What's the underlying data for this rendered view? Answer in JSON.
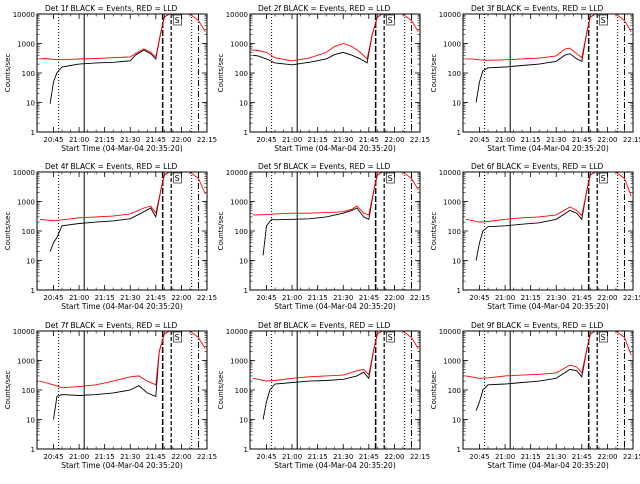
{
  "chart_data": {
    "type": "line",
    "x_ticks": [
      "20:45",
      "21:00",
      "21:15",
      "21:30",
      "21:45",
      "22:00",
      "22:15"
    ],
    "y_ticks": [
      "1",
      "10",
      "100",
      "1000",
      "10000"
    ],
    "y_scale": "log",
    "ylim": [
      1,
      10000
    ],
    "ylabel": "Counts/sec",
    "xlabel": "Start Time (04-Mar-04 20:35:20)",
    "legend_text": "BLACK = Events, RED = LLD",
    "annotation": "S",
    "colors": {
      "events": "#000000",
      "lld": "#ff0000"
    },
    "panels": [
      {
        "title": "Det 1f",
        "series": [
          {
            "name": "Events",
            "x": [
              "20:43",
              "20:45",
              "20:47",
              "20:50",
              "20:55",
              "21:00",
              "21:10",
              "21:20",
              "21:30",
              "21:33",
              "21:38",
              "21:42",
              "21:45",
              "21:48",
              "21:50",
              "21:53"
            ],
            "y": [
              9,
              50,
              100,
              160,
              180,
              200,
              220,
              230,
              260,
              400,
              600,
              450,
              300,
              2500,
              8000,
              10000
            ]
          },
          {
            "name": "LLD",
            "x": [
              "20:37",
              "20:40",
              "20:45",
              "20:50",
              "21:00",
              "21:10",
              "21:20",
              "21:30",
              "21:33",
              "21:38",
              "21:42",
              "21:45",
              "21:48",
              "21:50",
              "21:53",
              "22:05",
              "22:10",
              "22:14"
            ],
            "y": [
              300,
              310,
              290,
              280,
              300,
              310,
              330,
              350,
              450,
              650,
              500,
              350,
              2500,
              8000,
              10000,
              10000,
              6000,
              2500
            ]
          }
        ]
      },
      {
        "title": "Det 2f",
        "series": [
          {
            "name": "Events",
            "x": [
              "20:37",
              "20:40",
              "20:45",
              "20:50",
              "21:00",
              "21:10",
              "21:20",
              "21:25",
              "21:30",
              "21:35",
              "21:40",
              "21:44",
              "21:47",
              "21:50",
              "21:53"
            ],
            "y": [
              400,
              380,
              300,
              220,
              190,
              230,
              300,
              420,
              500,
              400,
              300,
              220,
              2000,
              8000,
              10000
            ]
          },
          {
            "name": "LLD",
            "x": [
              "20:37",
              "20:40",
              "20:45",
              "20:50",
              "21:00",
              "21:10",
              "21:20",
              "21:25",
              "21:30",
              "21:35",
              "21:40",
              "21:44",
              "21:47",
              "21:50",
              "21:53",
              "22:05",
              "22:10",
              "22:14"
            ],
            "y": [
              600,
              580,
              500,
              330,
              260,
              320,
              500,
              800,
              1000,
              800,
              500,
              300,
              2000,
              8000,
              10000,
              10000,
              6000,
              2500
            ]
          }
        ]
      },
      {
        "title": "Det 3f",
        "series": [
          {
            "name": "Events",
            "x": [
              "20:43",
              "20:45",
              "20:47",
              "20:50",
              "21:00",
              "21:10",
              "21:20",
              "21:30",
              "21:35",
              "21:38",
              "21:42",
              "21:45",
              "21:48",
              "21:50",
              "21:53"
            ],
            "y": [
              10,
              50,
              120,
              150,
              160,
              180,
              200,
              250,
              400,
              450,
              300,
              250,
              2500,
              8000,
              10000
            ]
          },
          {
            "name": "LLD",
            "x": [
              "20:37",
              "20:40",
              "20:45",
              "20:50",
              "21:00",
              "21:10",
              "21:20",
              "21:30",
              "21:35",
              "21:38",
              "21:42",
              "21:45",
              "21:48",
              "21:50",
              "21:53",
              "22:05",
              "22:10",
              "22:14"
            ],
            "y": [
              300,
              300,
              280,
              270,
              280,
              300,
              320,
              380,
              650,
              700,
              450,
              330,
              2500,
              8000,
              10000,
              10000,
              6000,
              2500
            ]
          }
        ]
      },
      {
        "title": "Det 4f",
        "series": [
          {
            "name": "Events",
            "x": [
              "20:43",
              "20:45",
              "20:47",
              "20:50",
              "21:00",
              "21:10",
              "21:20",
              "21:30",
              "21:38",
              "21:42",
              "21:45",
              "21:48",
              "21:50",
              "21:53"
            ],
            "y": [
              20,
              40,
              60,
              150,
              180,
              200,
              220,
              260,
              450,
              600,
              300,
              2500,
              8000,
              10000
            ]
          },
          {
            "name": "LLD",
            "x": [
              "20:37",
              "20:40",
              "20:45",
              "20:50",
              "21:00",
              "21:10",
              "21:20",
              "21:30",
              "21:38",
              "21:42",
              "21:45",
              "21:48",
              "21:50",
              "21:53",
              "22:05",
              "22:10",
              "22:14"
            ],
            "y": [
              250,
              240,
              220,
              240,
              280,
              300,
              320,
              380,
              600,
              700,
              400,
              2500,
              8000,
              10000,
              10000,
              6000,
              1800
            ]
          }
        ]
      },
      {
        "title": "Det 5f",
        "series": [
          {
            "name": "Events",
            "x": [
              "20:43",
              "20:45",
              "20:48",
              "20:50",
              "21:00",
              "21:10",
              "21:20",
              "21:30",
              "21:35",
              "21:38",
              "21:42",
              "21:45",
              "21:48",
              "21:50",
              "21:53"
            ],
            "y": [
              15,
              150,
              250,
              240,
              250,
              260,
              300,
              400,
              500,
              600,
              300,
              250,
              2500,
              8000,
              10000
            ]
          },
          {
            "name": "LLD",
            "x": [
              "20:37",
              "20:40",
              "20:45",
              "20:50",
              "21:00",
              "21:10",
              "21:20",
              "21:30",
              "21:35",
              "21:38",
              "21:42",
              "21:45",
              "21:48",
              "21:50",
              "21:53",
              "22:05",
              "22:10",
              "22:14"
            ],
            "y": [
              350,
              350,
              360,
              380,
              400,
              400,
              420,
              450,
              550,
              700,
              400,
              350,
              2500,
              8000,
              10000,
              10000,
              6000,
              2500
            ]
          }
        ]
      },
      {
        "title": "Det 6f",
        "series": [
          {
            "name": "Events",
            "x": [
              "20:43",
              "20:45",
              "20:47",
              "20:50",
              "21:00",
              "21:10",
              "21:20",
              "21:30",
              "21:38",
              "21:42",
              "21:45",
              "21:48",
              "21:50",
              "21:53"
            ],
            "y": [
              10,
              40,
              100,
              140,
              150,
              170,
              190,
              250,
              500,
              400,
              250,
              2500,
              8000,
              10000
            ]
          },
          {
            "name": "LLD",
            "x": [
              "20:37",
              "20:40",
              "20:45",
              "20:50",
              "21:00",
              "21:10",
              "21:20",
              "21:30",
              "21:38",
              "21:42",
              "21:45",
              "21:48",
              "21:50",
              "21:53",
              "22:05",
              "22:10",
              "22:14"
            ],
            "y": [
              250,
              230,
              200,
              210,
              250,
              280,
              300,
              350,
              650,
              500,
              330,
              2500,
              8000,
              10000,
              10000,
              6000,
              1500
            ]
          }
        ]
      },
      {
        "title": "Det 7f",
        "series": [
          {
            "name": "Events",
            "x": [
              "20:45",
              "20:47",
              "20:50",
              "21:00",
              "21:10",
              "21:20",
              "21:30",
              "21:35",
              "21:40",
              "21:45",
              "21:47",
              "21:50",
              "21:53"
            ],
            "y": [
              10,
              60,
              70,
              65,
              70,
              80,
              100,
              140,
              80,
              60,
              2000,
              8000,
              10000
            ]
          },
          {
            "name": "LLD",
            "x": [
              "20:37",
              "20:40",
              "20:45",
              "20:50",
              "21:00",
              "21:10",
              "21:20",
              "21:30",
              "21:35",
              "21:40",
              "21:45",
              "21:47",
              "21:50",
              "21:53",
              "22:05",
              "22:10",
              "22:14"
            ],
            "y": [
              200,
              180,
              150,
              120,
              130,
              150,
              200,
              280,
              300,
              200,
              150,
              2000,
              8000,
              10000,
              10000,
              6000,
              2500
            ]
          }
        ]
      },
      {
        "title": "Det 8f",
        "series": [
          {
            "name": "Events",
            "x": [
              "20:43",
              "20:45",
              "20:47",
              "20:50",
              "21:00",
              "21:10",
              "21:20",
              "21:30",
              "21:38",
              "21:42",
              "21:45",
              "21:48",
              "21:50",
              "21:53"
            ],
            "y": [
              10,
              40,
              100,
              160,
              180,
              200,
              210,
              230,
              300,
              400,
              250,
              2500,
              8000,
              10000
            ]
          },
          {
            "name": "LLD",
            "x": [
              "20:37",
              "20:40",
              "20:45",
              "20:50",
              "21:00",
              "21:10",
              "21:20",
              "21:30",
              "21:38",
              "21:42",
              "21:45",
              "21:48",
              "21:50",
              "21:53",
              "22:05",
              "22:10",
              "22:14"
            ],
            "y": [
              250,
              230,
              200,
              210,
              250,
              280,
              300,
              320,
              450,
              500,
              330,
              2500,
              8000,
              10000,
              10000,
              6000,
              2500
            ]
          }
        ]
      },
      {
        "title": "Det 9f",
        "series": [
          {
            "name": "Events",
            "x": [
              "20:43",
              "20:45",
              "20:47",
              "20:50",
              "21:00",
              "21:10",
              "21:20",
              "21:30",
              "21:38",
              "21:42",
              "21:45",
              "21:48",
              "21:50",
              "21:53"
            ],
            "y": [
              20,
              40,
              100,
              150,
              160,
              180,
              200,
              250,
              500,
              450,
              280,
              2500,
              8000,
              10000
            ]
          },
          {
            "name": "LLD",
            "x": [
              "20:37",
              "20:40",
              "20:45",
              "20:50",
              "21:00",
              "21:10",
              "21:20",
              "21:30",
              "21:38",
              "21:42",
              "21:45",
              "21:48",
              "21:50",
              "21:53",
              "22:05",
              "22:10",
              "22:14"
            ],
            "y": [
              300,
              280,
              250,
              260,
              300,
              320,
              340,
              380,
              700,
              600,
              380,
              2500,
              8000,
              10000,
              10000,
              6000,
              1500
            ]
          }
        ]
      }
    ]
  }
}
